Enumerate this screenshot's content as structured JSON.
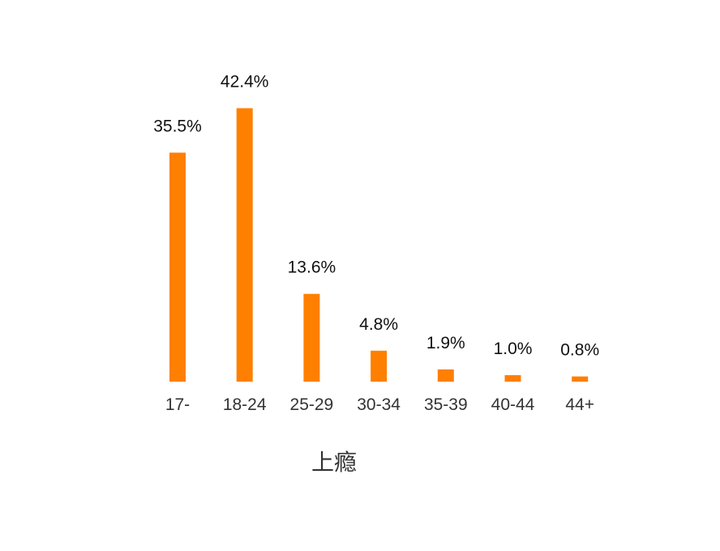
{
  "chart_data": {
    "type": "bar",
    "title": "",
    "xlabel": "上瘾",
    "ylabel": "",
    "categories": [
      "17-",
      "18-24",
      "25-29",
      "30-34",
      "35-39",
      "40-44",
      "44+"
    ],
    "values": [
      35.5,
      42.4,
      13.6,
      4.8,
      1.9,
      1.0,
      0.8
    ],
    "value_labels": [
      "35.5%",
      "42.4%",
      "13.6%",
      "4.8%",
      "1.9%",
      "1.0%",
      "0.8%"
    ],
    "ylim": [
      0,
      45
    ],
    "grid": false,
    "legend": "none",
    "bar_color": "#FF7F00"
  }
}
